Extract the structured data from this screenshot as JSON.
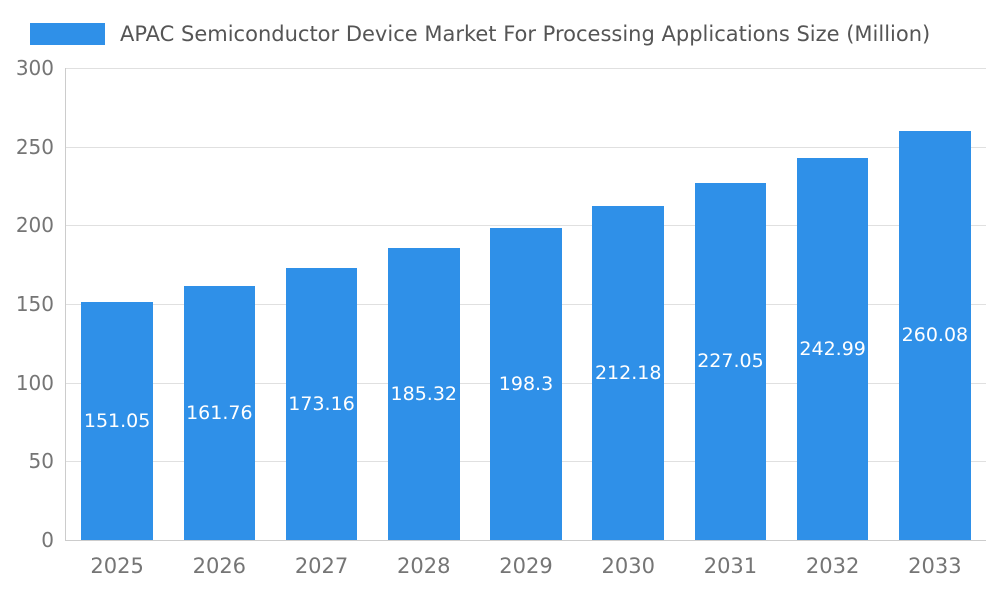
{
  "legend": {
    "title": "APAC Semiconductor Device Market For Processing Applications Size (Million)"
  },
  "chart_data": {
    "type": "bar",
    "title": "APAC Semiconductor Device Market For Processing Applications Size (Million)",
    "categories": [
      "2025",
      "2026",
      "2027",
      "2028",
      "2029",
      "2030",
      "2031",
      "2032",
      "2033"
    ],
    "values": [
      151.05,
      161.76,
      173.16,
      185.32,
      198.3,
      212.18,
      227.05,
      242.99,
      260.08
    ],
    "value_labels": [
      "151.05",
      "161.76",
      "173.16",
      "185.32",
      "198.3",
      "212.18",
      "227.05",
      "242.99",
      "260.08"
    ],
    "xlabel": "",
    "ylabel": "",
    "ylim": [
      0,
      300
    ],
    "yticks": [
      0,
      50,
      100,
      150,
      200,
      250,
      300
    ],
    "grid": true,
    "legend_position": "top-left",
    "colors": {
      "bar": "#2F90E8",
      "value_label": "#ffffff",
      "axis_text": "#757575",
      "gridline": "#e0e0e0",
      "axis_line": "#cccccc",
      "legend_text": "#555555"
    }
  }
}
